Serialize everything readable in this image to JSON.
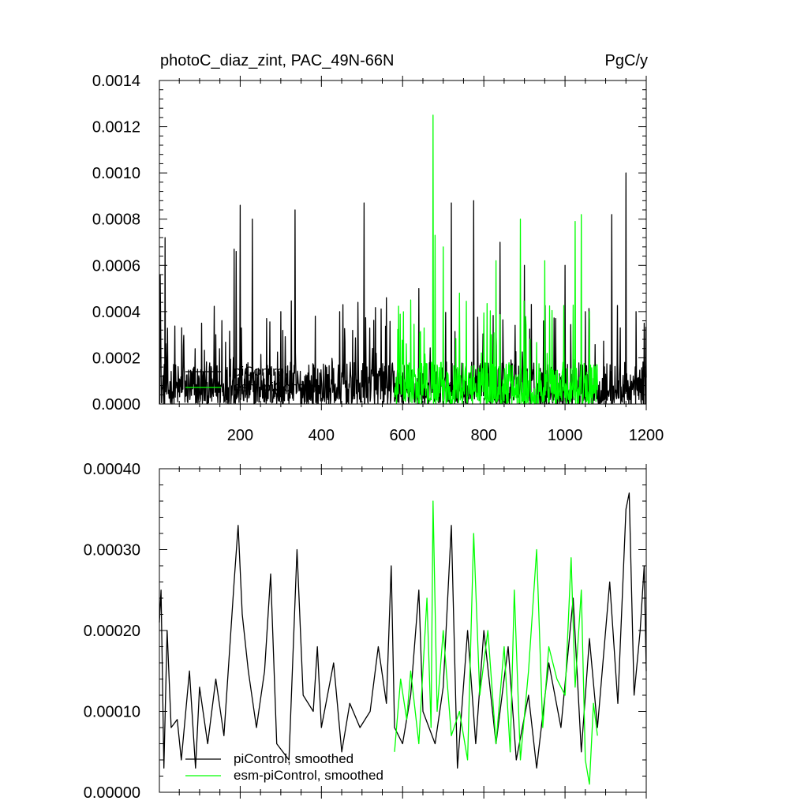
{
  "figure": {
    "title_left": "photoC_diaz_zint, PAC_49N-66N",
    "title_right": "PgC/y"
  },
  "colors": {
    "piControl": "#000000",
    "esm_piControl": "#00ff00",
    "axis": "#000000",
    "background": "#ffffff"
  },
  "chart_data": [
    {
      "type": "line",
      "title": "photoC_diaz_zint, PAC_49N-66N",
      "unit_label": "PgC/y",
      "xlim": [
        1,
        1200
      ],
      "ylim": [
        0,
        0.0014
      ],
      "xticks": [
        200,
        400,
        600,
        800,
        1000,
        1200
      ],
      "xtick_labels": [
        "200",
        "400",
        "600",
        "800",
        "1000",
        "1200"
      ],
      "yticks": [
        0,
        0.0002,
        0.0004,
        0.0006,
        0.0008,
        0.001,
        0.0012,
        0.0014
      ],
      "ytick_labels": [
        "0.0000",
        "0.0002",
        "0.0004",
        "0.0006",
        "0.0008",
        "0.0010",
        "0.0012",
        "0.0014"
      ],
      "legend_position": "lower-left",
      "grid": false,
      "series": [
        {
          "name": "piControl",
          "color": "#000000",
          "x_range": [
            1,
            1200
          ],
          "noisy": true,
          "peaks": [
            [
              3,
              0.00056
            ],
            [
              15,
              0.00072
            ],
            [
              60,
              0.00025
            ],
            [
              105,
              0.00035
            ],
            [
              140,
              0.0003
            ],
            [
              185,
              0.00067
            ],
            [
              190,
              0.00066
            ],
            [
              200,
              0.00086
            ],
            [
              230,
              0.0008
            ],
            [
              265,
              0.00037
            ],
            [
              300,
              0.0004
            ],
            [
              335,
              0.00084
            ],
            [
              385,
              0.00038
            ],
            [
              445,
              0.0004
            ],
            [
              505,
              0.00087
            ],
            [
              560,
              0.00046
            ],
            [
              640,
              0.0005
            ],
            [
              720,
              0.00087
            ],
            [
              775,
              0.00088
            ],
            [
              840,
              0.0007
            ],
            [
              900,
              0.0006
            ],
            [
              1000,
              0.0006
            ],
            [
              1050,
              0.0004
            ],
            [
              1115,
              0.00082
            ],
            [
              1150,
              0.001
            ],
            [
              1175,
              0.0004
            ],
            [
              1195,
              0.00035
            ]
          ]
        },
        {
          "name": "esm-piControl",
          "color": "#00ff00",
          "x_range": [
            580,
            1080
          ],
          "noisy": true,
          "peaks": [
            [
              620,
              0.00045
            ],
            [
              675,
              0.00125
            ],
            [
              680,
              0.00073
            ],
            [
              700,
              0.00068
            ],
            [
              740,
              0.00048
            ],
            [
              800,
              0.00055
            ],
            [
              830,
              0.00062
            ],
            [
              890,
              0.0008
            ],
            [
              950,
              0.00062
            ],
            [
              1025,
              0.00079
            ],
            [
              1040,
              0.00082
            ],
            [
              1060,
              0.0004
            ]
          ]
        }
      ]
    },
    {
      "type": "line",
      "xlim": [
        1,
        1200
      ],
      "ylim": [
        0,
        0.0004
      ],
      "xticks": [
        200,
        400,
        600,
        800,
        1000,
        1200
      ],
      "xtick_labels": [],
      "yticks": [
        0,
        0.0001,
        0.0002,
        0.0003,
        0.0004
      ],
      "ytick_labels": [
        "0.00000",
        "0.00010",
        "0.00020",
        "0.00030",
        "0.00040"
      ],
      "legend_position": "lower-left",
      "grid": false,
      "series": [
        {
          "name": "piControl, smoothed",
          "color": "#000000",
          "x_range": [
            1,
            1200
          ],
          "points": [
            [
              1,
              0.00021
            ],
            [
              5,
              0.00025
            ],
            [
              12,
              3e-05
            ],
            [
              20,
              0.0002
            ],
            [
              30,
              8e-05
            ],
            [
              45,
              9e-05
            ],
            [
              55,
              4e-05
            ],
            [
              75,
              0.00015
            ],
            [
              90,
              3e-05
            ],
            [
              100,
              0.00013
            ],
            [
              120,
              6e-05
            ],
            [
              140,
              0.00014
            ],
            [
              160,
              7e-05
            ],
            [
              185,
              0.00026
            ],
            [
              195,
              0.00033
            ],
            [
              205,
              0.00022
            ],
            [
              220,
              0.00015
            ],
            [
              240,
              8e-05
            ],
            [
              260,
              0.00015
            ],
            [
              275,
              0.00027
            ],
            [
              290,
              6e-05
            ],
            [
              320,
              4e-05
            ],
            [
              340,
              0.0003
            ],
            [
              355,
              0.00012
            ],
            [
              380,
              0.0001
            ],
            [
              390,
              0.00018
            ],
            [
              400,
              8e-05
            ],
            [
              430,
              0.00016
            ],
            [
              450,
              5e-05
            ],
            [
              470,
              0.00011
            ],
            [
              495,
              8e-05
            ],
            [
              520,
              0.0001
            ],
            [
              540,
              0.00018
            ],
            [
              560,
              0.00011
            ],
            [
              572,
              0.00028
            ],
            [
              580,
              8e-05
            ],
            [
              600,
              6e-05
            ],
            [
              620,
              0.00012
            ],
            [
              640,
              0.00025
            ],
            [
              650,
              0.0001
            ],
            [
              680,
              6e-05
            ],
            [
              700,
              0.00013
            ],
            [
              720,
              0.00033
            ],
            [
              735,
              3e-05
            ],
            [
              760,
              0.0002
            ],
            [
              780,
              6e-05
            ],
            [
              800,
              0.0002
            ],
            [
              830,
              6e-05
            ],
            [
              860,
              0.00018
            ],
            [
              880,
              4e-05
            ],
            [
              910,
              0.00012
            ],
            [
              930,
              3e-05
            ],
            [
              960,
              0.00016
            ],
            [
              990,
              8e-05
            ],
            [
              1020,
              0.00024
            ],
            [
              1040,
              5e-05
            ],
            [
              1060,
              0.00019
            ],
            [
              1080,
              8e-05
            ],
            [
              1110,
              0.00026
            ],
            [
              1130,
              0.00011
            ],
            [
              1150,
              0.00035
            ],
            [
              1158,
              0.00037
            ],
            [
              1170,
              0.00012
            ],
            [
              1185,
              0.0002
            ],
            [
              1195,
              0.00028
            ],
            [
              1200,
              0.00015
            ]
          ]
        },
        {
          "name": "esm-piControl, smoothed",
          "color": "#00ff00",
          "x_range": [
            580,
            1080
          ],
          "points": [
            [
              580,
              5e-05
            ],
            [
              595,
              0.00014
            ],
            [
              610,
              9e-05
            ],
            [
              620,
              0.00015
            ],
            [
              640,
              6e-05
            ],
            [
              660,
              0.00024
            ],
            [
              670,
              8e-05
            ],
            [
              675,
              0.00036
            ],
            [
              685,
              0.0001
            ],
            [
              700,
              0.0002
            ],
            [
              720,
              7e-05
            ],
            [
              740,
              0.0001
            ],
            [
              760,
              4e-05
            ],
            [
              775,
              0.00032
            ],
            [
              790,
              0.00012
            ],
            [
              810,
              0.0002
            ],
            [
              830,
              6e-05
            ],
            [
              850,
              0.00018
            ],
            [
              865,
              5e-05
            ],
            [
              875,
              0.00025
            ],
            [
              890,
              4e-05
            ],
            [
              910,
              0.00015
            ],
            [
              930,
              0.0003
            ],
            [
              945,
              8e-05
            ],
            [
              960,
              0.00018
            ],
            [
              980,
              0.00014
            ],
            [
              1000,
              0.00012
            ],
            [
              1015,
              0.00029
            ],
            [
              1025,
              0.00013
            ],
            [
              1040,
              0.00025
            ],
            [
              1050,
              4e-05
            ],
            [
              1060,
              1e-05
            ],
            [
              1070,
              0.00011
            ],
            [
              1080,
              7e-05
            ]
          ]
        }
      ]
    }
  ]
}
